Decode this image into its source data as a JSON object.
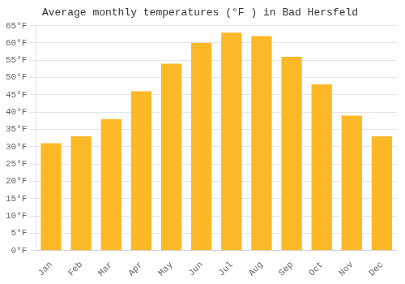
{
  "chart_data": {
    "type": "bar",
    "title": "Average monthly temperatures (°F ) in Bad Hersfeld",
    "categories": [
      "Jan",
      "Feb",
      "Mar",
      "Apr",
      "May",
      "Jun",
      "Jul",
      "Aug",
      "Sep",
      "Oct",
      "Nov",
      "Dec"
    ],
    "values": [
      31,
      33,
      38,
      46,
      54,
      60,
      63,
      62,
      56,
      48,
      39,
      33
    ],
    "color": "#FDB827",
    "ylim": [
      0,
      65
    ],
    "yticks": [
      {
        "value": 0,
        "label": "0°F"
      },
      {
        "value": 5,
        "label": "5°F"
      },
      {
        "value": 10,
        "label": "10°F"
      },
      {
        "value": 15,
        "label": "15°F"
      },
      {
        "value": 20,
        "label": "20°F"
      },
      {
        "value": 25,
        "label": "25°F"
      },
      {
        "value": 30,
        "label": "30°F"
      },
      {
        "value": 35,
        "label": "35°F"
      },
      {
        "value": 40,
        "label": "40°F"
      },
      {
        "value": 45,
        "label": "45°F"
      },
      {
        "value": 50,
        "label": "50°F"
      },
      {
        "value": 55,
        "label": "55°F"
      },
      {
        "value": 60,
        "label": "60°F"
      },
      {
        "value": 65,
        "label": "65°F"
      }
    ],
    "grid": true
  }
}
